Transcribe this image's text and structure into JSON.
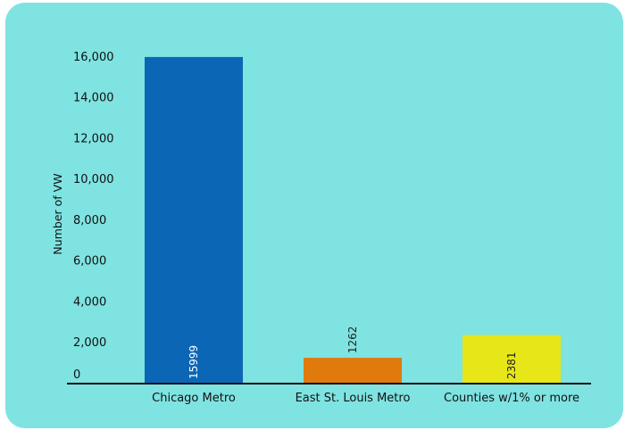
{
  "chart_data": {
    "type": "bar",
    "title": "",
    "xlabel": "",
    "ylabel": "Number of VW",
    "categories": [
      "Chicago Metro",
      "East St. Louis Metro",
      "Counties w/1% or more"
    ],
    "values": [
      15999,
      1262,
      2381
    ],
    "data_labels": [
      "15999",
      "1262",
      "2381"
    ],
    "colors": [
      "#0c66b6",
      "#e07a0c",
      "#e6e619"
    ],
    "label_colors": [
      "#ffffff",
      "#222222",
      "#222222"
    ],
    "label_position": [
      "inside-bottom",
      "above",
      "inside-bottom"
    ],
    "ylim": [
      0,
      17000
    ],
    "yticks": [
      0,
      2000,
      4000,
      6000,
      8000,
      10000,
      12000,
      14000,
      16000
    ],
    "ytick_labels": [
      "0",
      "2,000",
      "4,000",
      "6,000",
      "8,000",
      "10,000",
      "12,000",
      "14,000",
      "16,000"
    ],
    "grid": false,
    "legend": "none",
    "background": "#7fe3e1"
  }
}
